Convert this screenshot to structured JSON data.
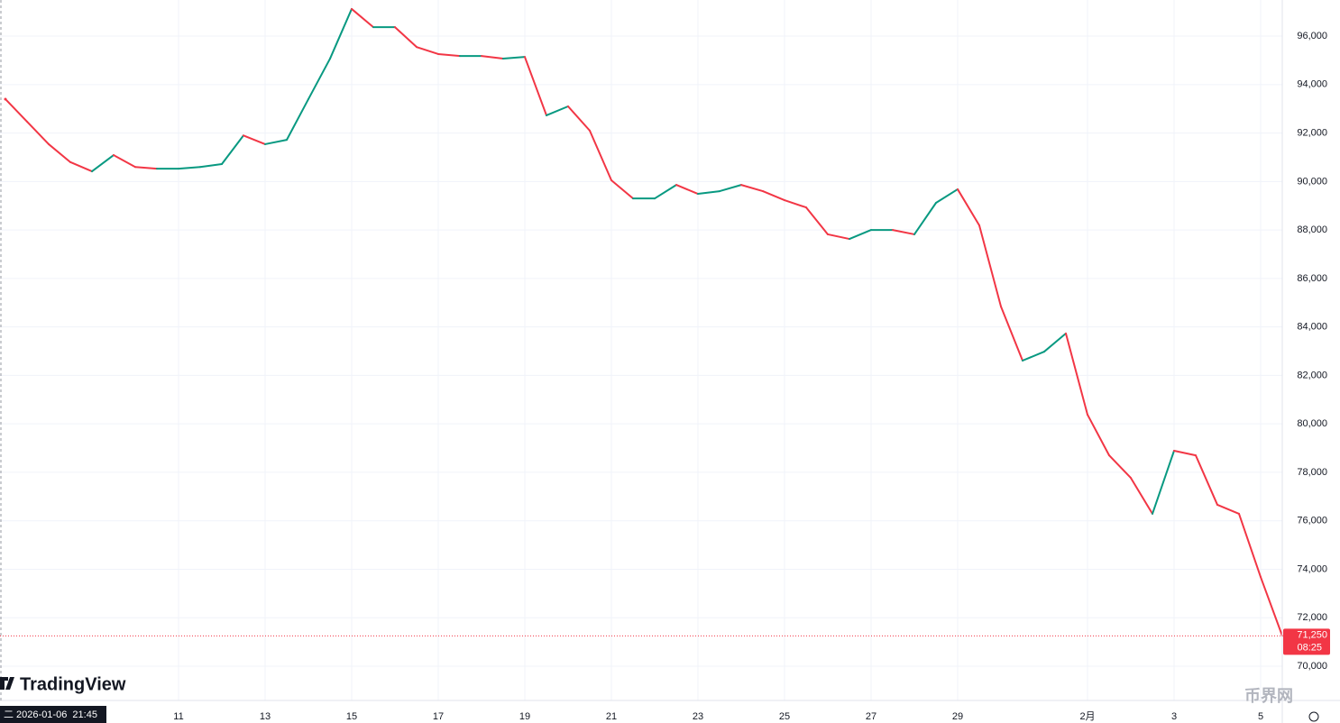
{
  "chart_data": {
    "type": "candle-line",
    "brand": "TradingView",
    "watermark": "币界网",
    "cursor_date": "二 2026-01-06  21:45",
    "categories": [
      null,
      null,
      null,
      null,
      null,
      null,
      null,
      null,
      "11",
      null,
      null,
      null,
      "13",
      null,
      null,
      null,
      "15",
      null,
      null,
      null,
      "17",
      null,
      null,
      null,
      "19",
      null,
      null,
      null,
      "21",
      null,
      null,
      null,
      "23",
      null,
      null,
      null,
      "25",
      null,
      null,
      null,
      "27",
      null,
      null,
      null,
      "29",
      null,
      null,
      null,
      null,
      null,
      "2月",
      null,
      null,
      null,
      "3",
      null,
      null,
      null,
      "5",
      null
    ],
    "values": [
      93400,
      92470,
      91540,
      90800,
      90420,
      91090,
      90600,
      90530,
      90530,
      90600,
      90720,
      91900,
      91540,
      91720,
      93400,
      95070,
      97120,
      96370,
      96370,
      95550,
      95260,
      95180,
      95180,
      95070,
      95140,
      92730,
      93100,
      92100,
      90050,
      89300,
      89300,
      89860,
      89490,
      89600,
      89860,
      89600,
      89230,
      88930,
      87820,
      87630,
      88000,
      88000,
      87820,
      89120,
      89680,
      88190,
      84840,
      82610,
      82980,
      83730,
      80380,
      78700,
      77770,
      76290,
      78890,
      78700,
      76660,
      76290,
      73680,
      71250
    ],
    "up_color": "#089981",
    "down_color": "#f23645",
    "last_price": 71250,
    "last_price_label": "71,250",
    "countdown": "08:25",
    "ylim": [
      68660,
      97490
    ],
    "yticks": [
      {
        "value": 70000,
        "label": "70,000"
      },
      {
        "value": 72000,
        "label": "72,000"
      },
      {
        "value": 74000,
        "label": "74,000"
      },
      {
        "value": 76000,
        "label": "76,000"
      },
      {
        "value": 78000,
        "label": "78,000"
      },
      {
        "value": 80000,
        "label": "80,000"
      },
      {
        "value": 82000,
        "label": "82,000"
      },
      {
        "value": 84000,
        "label": "84,000"
      },
      {
        "value": 86000,
        "label": "86,000"
      },
      {
        "value": 88000,
        "label": "88,000"
      },
      {
        "value": 90000,
        "label": "90,000"
      },
      {
        "value": 92000,
        "label": "92,000"
      },
      {
        "value": 94000,
        "label": "94,000"
      },
      {
        "value": 96000,
        "label": "96,000"
      }
    ],
    "grid": true
  }
}
